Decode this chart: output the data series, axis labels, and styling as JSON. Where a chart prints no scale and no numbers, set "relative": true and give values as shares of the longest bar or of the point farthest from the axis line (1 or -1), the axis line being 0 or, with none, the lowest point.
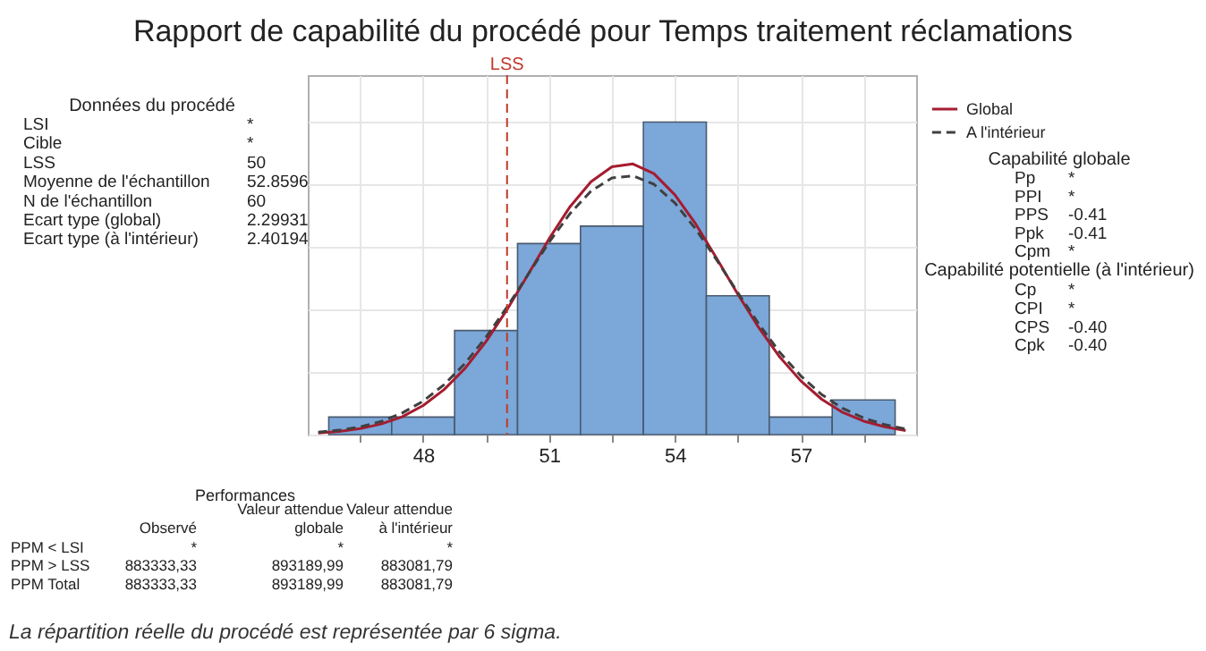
{
  "chart_data": [
    {
      "type": "histogram",
      "title": "Rapport de capabilité du procédé pour Temps traitement réclamations",
      "relative": true,
      "color": "#7ba7d9",
      "bins": [
        45.75,
        47.25,
        48.75,
        50.25,
        51.75,
        53.25,
        54.75,
        56.25,
        57.75,
        59.25
      ],
      "values": [
        0.056,
        0.056,
        0.333,
        0.611,
        0.667,
        1,
        0.444,
        0.056,
        0.111
      ],
      "xlim": [
        45.25,
        59.75
      ],
      "xticks": [
        {
          "value": 46.5,
          "label": null
        },
        48,
        {
          "value": 49.5,
          "label": null
        },
        51,
        {
          "value": 52.5,
          "label": null
        },
        54,
        {
          "value": 55.5,
          "label": null
        },
        57,
        {
          "value": 58.5,
          "label": null
        }
      ],
      "grid": true,
      "legend": "top right",
      "ref_lines": [
        {
          "axis": "x",
          "value": 50,
          "label": "LSS",
          "color": "#c0392b",
          "line_style": "dashed"
        }
      ],
      "series": [
        {
          "name": "Global",
          "type": "line",
          "line_style": "solid",
          "color": "#a51c30",
          "x": [
            45.5,
            46,
            46.5,
            47,
            47.5,
            48,
            48.5,
            49,
            49.5,
            50,
            50.5,
            51,
            51.5,
            52,
            52.5,
            53,
            53.5,
            54,
            54.5,
            55,
            55.5,
            56,
            56.5,
            57,
            57.5,
            58,
            58.5,
            59,
            59.5
          ],
          "values": [
            0.005,
            0.01,
            0.019,
            0.034,
            0.057,
            0.093,
            0.144,
            0.212,
            0.298,
            0.4,
            0.512,
            0.626,
            0.729,
            0.809,
            0.857,
            0.866,
            0.835,
            0.767,
            0.673,
            0.563,
            0.449,
            0.342,
            0.248,
            0.172,
            0.113,
            0.071,
            0.043,
            0.025,
            0.013
          ]
        },
        {
          "name": "A l'intérieur",
          "type": "line",
          "line_style": "dashed",
          "color": "#404040",
          "x": [
            45.5,
            46,
            46.5,
            47,
            47.5,
            48,
            48.5,
            49,
            49.5,
            50,
            50.5,
            51,
            51.5,
            52,
            52.5,
            53,
            53.5,
            54,
            54.5,
            55,
            55.5,
            56,
            56.5,
            57,
            57.5,
            58,
            58.5,
            59,
            59.5
          ],
          "values": [
            0.008,
            0.014,
            0.025,
            0.042,
            0.069,
            0.107,
            0.16,
            0.228,
            0.312,
            0.408,
            0.512,
            0.615,
            0.707,
            0.779,
            0.821,
            0.828,
            0.801,
            0.741,
            0.657,
            0.558,
            0.454,
            0.354,
            0.263,
            0.188,
            0.128,
            0.084,
            0.053,
            0.032,
            0.018
          ]
        }
      ],
      "annotations": [
        "La répartition réelle du procédé est représentée par 6 sigma."
      ]
    },
    {
      "type": "other",
      "title": "Données du procédé",
      "categories": [
        "LSI",
        "Cible",
        "LSS",
        "Moyenne de l'échantillon",
        "N de l'échantillon",
        "Ecart type (global)",
        "Ecart type (à l'intérieur)"
      ],
      "value_labels": [
        "*",
        "*",
        "50",
        "52.8596",
        "60",
        "2.29931",
        "2.40194"
      ]
    },
    {
      "type": "other",
      "title": "Capabilité globale",
      "categories": [
        "Pp",
        "PPI",
        "PPS",
        "Ppk",
        "Cpm"
      ],
      "value_labels": [
        "*",
        "*",
        "-0.41",
        "-0.41",
        "*"
      ]
    },
    {
      "type": "other",
      "title": "Capabilité potentielle (à l'intérieur)",
      "categories": [
        "Cp",
        "CPI",
        "CPS",
        "Cpk"
      ],
      "value_labels": [
        "*",
        "*",
        "-0.40",
        "-0.40"
      ]
    },
    {
      "type": "other",
      "title": "Performances",
      "categories": [
        "PPM < LSI",
        "PPM > LSS",
        "PPM Total"
      ],
      "series": [
        {
          "name": "Observé",
          "values": [
            null,
            883333.33,
            883333.33
          ],
          "value_labels": [
            "*",
            "883333,33",
            "883333,33"
          ]
        },
        {
          "name": "Valeur attendue globale",
          "values": [
            null,
            893189.99,
            893189.99
          ],
          "value_labels": [
            "*",
            "893189,99",
            "893189,99"
          ]
        },
        {
          "name": "Valeur attendue à l'intérieur",
          "values": [
            null,
            883081.79,
            883081.79
          ],
          "value_labels": [
            "*",
            "883081,79",
            "883081,79"
          ]
        }
      ]
    }
  ]
}
